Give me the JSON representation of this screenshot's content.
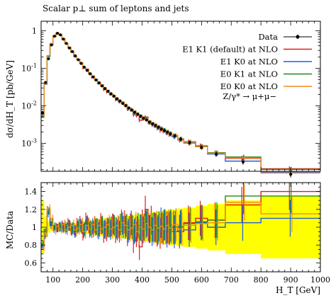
{
  "chart_data": {
    "type": "line",
    "title": "Scalar p⊥ sum of leptons and jets",
    "xlabel": "H_T [GeV]",
    "ylabel_main": "dσ/dH_T [pb/GeV]",
    "ylabel_ratio": "MC/Data",
    "x_ticks": [
      "100",
      "200",
      "300",
      "400",
      "500",
      "600",
      "700",
      "800",
      "900",
      "1000"
    ],
    "xlim": [
      60,
      1000
    ],
    "ylim_main": [
      0.00018,
      1.8
    ],
    "ylim_ratio": [
      0.5,
      1.5
    ],
    "y_ticks_main": [
      "10^-3",
      "10^-2",
      "10^-1",
      "1"
    ],
    "y_ticks_ratio": [
      "0.6",
      "0.8",
      "1",
      "1.2",
      "1.4"
    ],
    "process_label": "Z/γ* → μ+μ−",
    "bin_edges": [
      60,
      70,
      80,
      90,
      100,
      110,
      120,
      130,
      140,
      150,
      160,
      170,
      180,
      190,
      200,
      210,
      220,
      230,
      240,
      250,
      260,
      270,
      280,
      290,
      300,
      310,
      320,
      330,
      340,
      350,
      360,
      370,
      380,
      390,
      400,
      410,
      420,
      430,
      440,
      450,
      460,
      470,
      480,
      490,
      500,
      520,
      540,
      580,
      620,
      680,
      800,
      1000
    ],
    "data": {
      "name": "Data",
      "color": "#000000",
      "values": [
        0.0065,
        0.042,
        0.18,
        0.42,
        0.72,
        0.86,
        0.78,
        0.6,
        0.46,
        0.35,
        0.28,
        0.215,
        0.17,
        0.135,
        0.108,
        0.088,
        0.072,
        0.059,
        0.049,
        0.041,
        0.034,
        0.029,
        0.0245,
        0.021,
        0.018,
        0.0155,
        0.0134,
        0.0116,
        0.0101,
        0.0088,
        0.0077,
        0.0068,
        0.006,
        0.0053,
        0.0047,
        0.0042,
        0.0037,
        0.0033,
        0.003,
        0.0027,
        0.0024,
        0.0022,
        0.002,
        0.0018,
        0.0016,
        0.0013,
        0.00105,
        0.00078,
        0.00052,
        0.00032,
        0.00015
      ],
      "ratio_errors": [
        0.3,
        0.12,
        0.06,
        0.04,
        0.03,
        0.03,
        0.03,
        0.03,
        0.04,
        0.04,
        0.05,
        0.05,
        0.06,
        0.06,
        0.07,
        0.07,
        0.08,
        0.08,
        0.09,
        0.09,
        0.1,
        0.1,
        0.1,
        0.11,
        0.11,
        0.12,
        0.12,
        0.12,
        0.13,
        0.13,
        0.14,
        0.14,
        0.14,
        0.15,
        0.15,
        0.16,
        0.16,
        0.17,
        0.17,
        0.18,
        0.18,
        0.19,
        0.19,
        0.2,
        0.2,
        0.21,
        0.22,
        0.24,
        0.26,
        0.3,
        0.35
      ]
    },
    "band": {
      "color": "#ffff00"
    },
    "series": [
      {
        "name": "E1 K1 (default) at NLO",
        "color": "#e31a1c",
        "ratio": [
          0.8,
          0.95,
          1.2,
          1.05,
          1.0,
          1.0,
          1.0,
          1.02,
          1.01,
          1.04,
          0.98,
          0.98,
          1.03,
          1.05,
          0.93,
          1.08,
          1.02,
          0.97,
          1.03,
          1.0,
          1.06,
          0.93,
          0.95,
          1.0,
          1.04,
          0.94,
          1.0,
          1.07,
          1.06,
          0.92,
          1.02,
          0.85,
          0.92,
          0.78,
          1.05,
          1.2,
          1.0,
          1.08,
          1.0,
          0.95,
          0.93,
          0.98,
          1.0,
          0.98,
          1.0,
          0.95,
          1.05,
          1.1,
          1.08,
          1.25,
          1.4
        ]
      },
      {
        "name": "E1 K0 at NLO",
        "color": "#1f5fe0",
        "ratio": [
          0.78,
          0.9,
          1.15,
          1.02,
          0.98,
          0.99,
          1.01,
          1.0,
          0.98,
          1.02,
          0.97,
          0.95,
          1.0,
          1.02,
          0.96,
          1.04,
          0.97,
          1.01,
          1.0,
          0.96,
          1.02,
          0.98,
          1.0,
          0.97,
          1.03,
          0.99,
          0.95,
          1.04,
          1.0,
          0.96,
          1.05,
          0.95,
          0.98,
          1.0,
          0.97,
          1.03,
          0.98,
          0.95,
          1.0,
          0.97,
          1.05,
          1.02,
          0.95,
          1.0,
          0.95,
          1.0,
          0.97,
          1.05,
          1.0,
          1.05,
          1.1
        ]
      },
      {
        "name": "E0 K1 at NLO",
        "color": "#1a8a1a",
        "ratio": [
          0.82,
          0.97,
          1.18,
          1.06,
          1.01,
          0.99,
          1.0,
          0.99,
          1.0,
          1.02,
          0.99,
          0.96,
          1.02,
          1.0,
          0.98,
          1.05,
          0.99,
          0.98,
          1.01,
          0.99,
          1.03,
          0.97,
          0.99,
          1.01,
          1.02,
          0.97,
          1.03,
          1.0,
          1.02,
          0.99,
          1.0,
          0.97,
          1.02,
          0.99,
          1.0,
          1.05,
          0.98,
          1.0,
          0.99,
          1.01,
          0.99,
          1.03,
          1.0,
          1.02,
          1.0,
          1.01,
          1.04,
          1.06,
          1.08,
          1.35,
          1.35
        ]
      },
      {
        "name": "E0 K0 at NLO",
        "color": "#f28c1a",
        "ratio": [
          0.76,
          0.93,
          1.22,
          1.1,
          0.96,
          1.01,
          0.98,
          1.03,
          0.97,
          1.0,
          1.02,
          0.97,
          0.99,
          1.03,
          0.95,
          1.02,
          0.98,
          1.03,
          0.97,
          1.02,
          0.98,
          1.0,
          1.03,
          0.98,
          1.0,
          1.02,
          0.97,
          1.05,
          1.02,
          0.97,
          0.99,
          1.03,
          0.95,
          1.0,
          0.98,
          1.04,
          1.0,
          0.97,
          1.02,
          0.99,
          1.01,
          0.98,
          1.02,
          0.99,
          1.03,
          0.98,
          1.02,
          1.04,
          1.05,
          1.28,
          1.15
        ]
      }
    ]
  }
}
